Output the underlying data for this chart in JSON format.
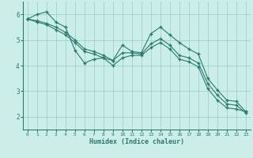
{
  "xlabel": "Humidex (Indice chaleur)",
  "ylabel": "",
  "background_color": "#cceee8",
  "grid_color": "#99cccc",
  "line_color": "#2a7a70",
  "xlim": [
    -0.5,
    23.5
  ],
  "ylim": [
    1.5,
    6.5
  ],
  "yticks": [
    2,
    3,
    4,
    5,
    6
  ],
  "xticks": [
    0,
    1,
    2,
    3,
    4,
    5,
    6,
    7,
    8,
    9,
    10,
    11,
    12,
    13,
    14,
    15,
    16,
    17,
    18,
    19,
    20,
    21,
    22,
    23
  ],
  "series": [
    [
      5.82,
      6.0,
      6.1,
      5.7,
      5.5,
      4.6,
      4.1,
      4.25,
      4.3,
      4.2,
      4.8,
      4.55,
      4.5,
      5.25,
      5.5,
      5.2,
      4.9,
      4.65,
      4.45,
      3.5,
      3.05,
      2.65,
      2.6,
      2.2
    ],
    [
      5.82,
      5.75,
      5.65,
      5.5,
      5.3,
      5.0,
      4.65,
      4.55,
      4.4,
      4.2,
      4.5,
      4.5,
      4.45,
      4.85,
      5.05,
      4.8,
      4.4,
      4.3,
      4.1,
      3.3,
      2.85,
      2.5,
      2.45,
      2.15
    ],
    [
      5.82,
      5.7,
      5.6,
      5.4,
      5.2,
      4.9,
      4.55,
      4.45,
      4.3,
      4.0,
      4.3,
      4.4,
      4.4,
      4.7,
      4.9,
      4.65,
      4.25,
      4.15,
      3.95,
      3.1,
      2.65,
      2.35,
      2.3,
      2.2
    ]
  ]
}
